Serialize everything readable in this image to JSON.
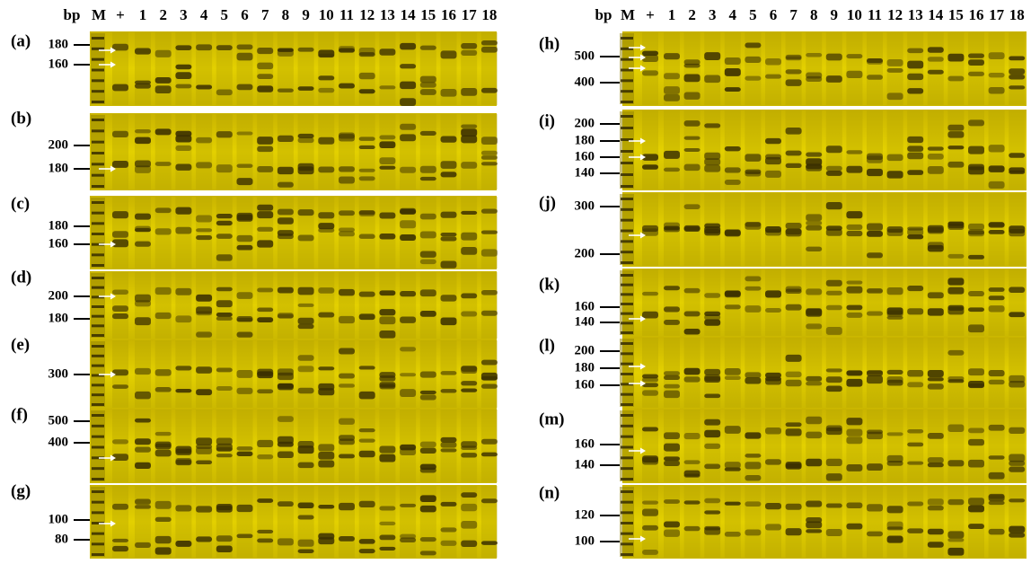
{
  "left": {
    "header": [
      "bp",
      "M",
      "+",
      "1",
      "2",
      "3",
      "4",
      "5",
      "6",
      "7",
      "8",
      "9",
      "10",
      "11",
      "12",
      "13",
      "14",
      "15",
      "16",
      "17",
      "18"
    ],
    "panels": [
      {
        "label": "(a)",
        "ticks": [
          "180",
          "160"
        ]
      },
      {
        "label": "(b)",
        "ticks": [
          "200",
          "180"
        ]
      },
      {
        "label": "(c)",
        "ticks": [
          "180",
          "160"
        ]
      },
      {
        "label": "(d)",
        "ticks": [
          "200",
          "180"
        ]
      },
      {
        "label": "(e)",
        "ticks": [
          "300"
        ]
      },
      {
        "label": "(f)",
        "ticks": [
          "500",
          "400"
        ]
      },
      {
        "label": "(g)",
        "ticks": [
          "100",
          "80"
        ]
      }
    ]
  },
  "right": {
    "header": [
      "bp",
      "M",
      "+",
      "1",
      "2",
      "3",
      "4",
      "5",
      "6",
      "7",
      "8",
      "9",
      "10",
      "11",
      "12",
      "13",
      "14",
      "15",
      "16",
      "17",
      "18"
    ],
    "panels": [
      {
        "label": "(h)",
        "ticks": [
          "500",
          "400"
        ]
      },
      {
        "label": "(i)",
        "ticks": [
          "200",
          "180",
          "160",
          "140"
        ]
      },
      {
        "label": "(j)",
        "ticks": [
          "300",
          "200"
        ]
      },
      {
        "label": "(k)",
        "ticks": [
          "160",
          "140"
        ]
      },
      {
        "label": "(l)",
        "ticks": [
          "200",
          "180",
          "160"
        ]
      },
      {
        "label": "(m)",
        "ticks": [
          "160",
          "140"
        ]
      },
      {
        "label": "(n)",
        "ticks": [
          "120",
          "100"
        ]
      }
    ]
  }
}
